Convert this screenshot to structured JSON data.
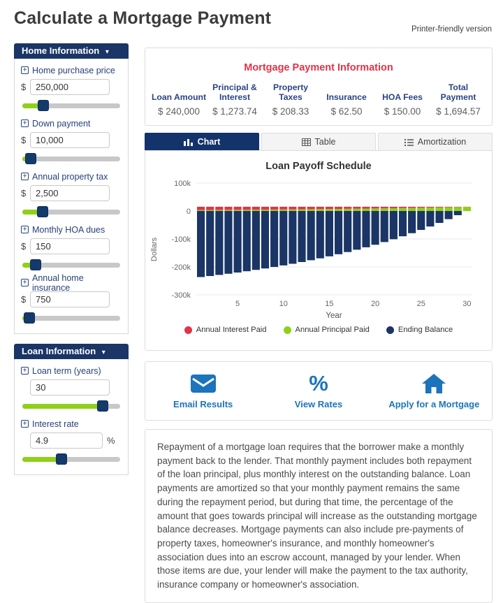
{
  "page": {
    "title": "Calculate a Mortgage Payment",
    "printer_link": "Printer-friendly version"
  },
  "colors": {
    "navy": "#1a3566",
    "blue": "#1b74bc",
    "green": "#8fd019",
    "red": "#e23349"
  },
  "sidebar": {
    "home_panel": {
      "title": "Home Information",
      "fields": [
        {
          "label": "Home purchase price",
          "prefix": "$",
          "value": "250,000",
          "suffix": "",
          "fill": 18
        },
        {
          "label": "Down payment",
          "prefix": "$",
          "value": "10,000",
          "suffix": "",
          "fill": 3
        },
        {
          "label": "Annual property tax",
          "prefix": "$",
          "value": "2,500",
          "suffix": "",
          "fill": 17
        },
        {
          "label": "Monthly HOA dues",
          "prefix": "$",
          "value": "150",
          "suffix": "",
          "fill": 9
        },
        {
          "label": "Annual home insurance",
          "prefix": "$",
          "value": "750",
          "suffix": "",
          "fill": 2
        }
      ]
    },
    "loan_panel": {
      "title": "Loan Information",
      "fields": [
        {
          "label": "Loan term (years)",
          "prefix": "",
          "value": "30",
          "suffix": "",
          "fill": 86
        },
        {
          "label": "Interest rate",
          "prefix": "",
          "value": "4.9",
          "suffix": "%",
          "fill": 39
        }
      ]
    }
  },
  "summary": {
    "title": "Mortgage Payment Information",
    "columns": [
      {
        "header": "Loan Amount",
        "value": "$ 240,000"
      },
      {
        "header": "Principal &\nInterest",
        "value": "$ 1,273.74"
      },
      {
        "header": "Property\nTaxes",
        "value": "$ 208.33"
      },
      {
        "header": "Insurance",
        "value": "$ 62.50"
      },
      {
        "header": "HOA Fees",
        "value": "$ 150.00"
      },
      {
        "header": "Total\nPayment",
        "value": "$ 1,694.57"
      }
    ]
  },
  "tabs": [
    {
      "label": "Chart",
      "icon": "bar-chart-icon",
      "active": true
    },
    {
      "label": "Table",
      "icon": "table-icon",
      "active": false
    },
    {
      "label": "Amortization",
      "icon": "list-icon",
      "active": false
    }
  ],
  "chart_data": {
    "type": "bar",
    "stacked": true,
    "title": "Loan Payoff Schedule",
    "xlabel": "Year",
    "ylabel": "Dollars",
    "x": [
      1,
      2,
      3,
      4,
      5,
      6,
      7,
      8,
      9,
      10,
      11,
      12,
      13,
      14,
      15,
      16,
      17,
      18,
      19,
      20,
      21,
      22,
      23,
      24,
      25,
      26,
      27,
      28,
      29,
      30
    ],
    "x_ticks": [
      5,
      10,
      15,
      20,
      25,
      30
    ],
    "ylim": [
      -300000,
      100000
    ],
    "y_ticks": [
      {
        "v": 100000,
        "label": "100k"
      },
      {
        "v": 0,
        "label": "0"
      },
      {
        "v": -100000,
        "label": "-100k"
      },
      {
        "v": -200000,
        "label": "-200k"
      },
      {
        "v": -300000,
        "label": "-300k"
      }
    ],
    "grid": true,
    "legend_position": "bottom",
    "series": [
      {
        "name": "Annual Interest Paid",
        "color": "#e23349",
        "values": [
          11679,
          11499,
          11310,
          11110,
          10901,
          10682,
          10451,
          10208,
          9954,
          9688,
          9406,
          9112,
          8803,
          8477,
          8137,
          7778,
          7402,
          7007,
          6592,
          6157,
          5699,
          5218,
          4715,
          4184,
          3629,
          3043,
          2430,
          1787,
          1110,
          398
        ]
      },
      {
        "name": "Annual Principal Paid",
        "color": "#8fd019",
        "values": [
          3606,
          3786,
          3975,
          4175,
          4384,
          4603,
          4834,
          5077,
          5331,
          5597,
          5879,
          6173,
          6482,
          6808,
          7148,
          7507,
          7883,
          8278,
          8693,
          9128,
          9586,
          10067,
          10570,
          11101,
          11656,
          12242,
          12855,
          13498,
          14175,
          14887
        ]
      },
      {
        "name": "Ending Balance",
        "color": "#1a3566",
        "values": [
          -236394,
          -232608,
          -228633,
          -224458,
          -220074,
          -215471,
          -210637,
          -205560,
          -200229,
          -194632,
          -188753,
          -182580,
          -176098,
          -169290,
          -162142,
          -154635,
          -146752,
          -138474,
          -129781,
          -120653,
          -111067,
          -101000,
          -90430,
          -79329,
          -67673,
          -55431,
          -42576,
          -29078,
          -14903,
          0
        ]
      }
    ]
  },
  "actions": [
    {
      "label": "Email Results",
      "icon": "envelope-icon"
    },
    {
      "label": "View Rates",
      "icon": "percent-icon"
    },
    {
      "label": "Apply for a Mortgage",
      "icon": "home-icon"
    }
  ],
  "description": "Repayment of a mortgage loan requires that the borrower make a monthly payment back to the lender. That monthly payment includes both repayment of the loan principal, plus monthly interest on the outstanding balance. Loan payments are amortized so that your monthly payment remains the same during the repayment period, but during that time, the percentage of the amount that goes towards principal will increase as the outstanding mortgage balance decreases. Mortgage payments can also include pre-payments of property taxes, homeowner's insurance, and monthly homeowner's association dues into an escrow account, managed by your lender. When those items are due, your lender will make the payment to the tax authority, insurance company or homeowner's association."
}
